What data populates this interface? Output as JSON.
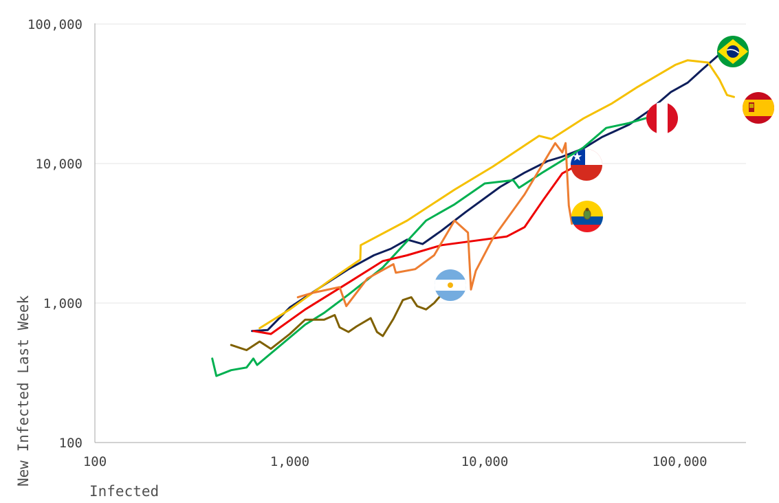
{
  "chart_data": {
    "type": "line",
    "title": "",
    "xlabel": "Infected",
    "ylabel": "New Infected Last Week",
    "x_scale": "log",
    "y_scale": "log",
    "xlim": [
      100,
      200000
    ],
    "ylim": [
      100,
      100000
    ],
    "x_ticks": [
      100,
      1000,
      10000,
      100000
    ],
    "x_tick_labels": [
      "100",
      "1,000",
      "10,000",
      "100,000"
    ],
    "y_ticks": [
      100,
      1000,
      10000,
      100000
    ],
    "y_tick_labels": [
      "100",
      "1,000",
      "10,000",
      "100,000"
    ],
    "grid": "horizontal",
    "legend": "flag icons at series ends",
    "series": [
      {
        "color": "#0e1e5b",
        "flag": "brazil-flag-icon",
        "points": [
          [
            640,
            630
          ],
          [
            770,
            640
          ],
          [
            1000,
            930
          ],
          [
            1500,
            1350
          ],
          [
            2000,
            1750
          ],
          [
            2700,
            2200
          ],
          [
            3300,
            2450
          ],
          [
            4000,
            2850
          ],
          [
            4800,
            2650
          ],
          [
            6000,
            3300
          ],
          [
            8000,
            4500
          ],
          [
            12000,
            6800
          ],
          [
            16000,
            8600
          ],
          [
            21000,
            10400
          ],
          [
            25000,
            11200
          ],
          [
            32000,
            12800
          ],
          [
            40000,
            15500
          ],
          [
            55000,
            19000
          ],
          [
            70000,
            24000
          ],
          [
            90000,
            32500
          ],
          [
            110000,
            38000
          ],
          [
            130000,
            47000
          ],
          [
            165000,
            63000
          ]
        ]
      },
      {
        "color": "#f5c000",
        "flag": "spain-flag-icon",
        "points": [
          [
            700,
            660
          ],
          [
            1000,
            900
          ],
          [
            1600,
            1450
          ],
          [
            2300,
            2050
          ],
          [
            2310,
            2600
          ],
          [
            4000,
            3900
          ],
          [
            7000,
            6500
          ],
          [
            11000,
            9500
          ],
          [
            19000,
            15800
          ],
          [
            22000,
            15000
          ],
          [
            32000,
            21000
          ],
          [
            45000,
            27000
          ],
          [
            60000,
            35000
          ],
          [
            95000,
            51000
          ],
          [
            110000,
            55000
          ],
          [
            140000,
            53000
          ],
          [
            160000,
            40000
          ],
          [
            175000,
            31000
          ],
          [
            190000,
            30000
          ]
        ]
      },
      {
        "color": "#00b050",
        "flag": "peru-flag-icon",
        "points": [
          [
            400,
            400
          ],
          [
            420,
            300
          ],
          [
            500,
            330
          ],
          [
            600,
            345
          ],
          [
            650,
            400
          ],
          [
            680,
            360
          ],
          [
            900,
            500
          ],
          [
            1200,
            700
          ],
          [
            1500,
            850
          ],
          [
            2000,
            1150
          ],
          [
            3000,
            1800
          ],
          [
            5000,
            3900
          ],
          [
            7000,
            5100
          ],
          [
            10000,
            7200
          ],
          [
            14000,
            7600
          ],
          [
            15000,
            6700
          ],
          [
            20000,
            8700
          ],
          [
            32000,
            13000
          ],
          [
            42000,
            18000
          ],
          [
            55000,
            19500
          ],
          [
            70000,
            21500
          ]
        ]
      },
      {
        "color": "#ee0000",
        "flag": "chile-flag-icon",
        "points": [
          [
            650,
            630
          ],
          [
            800,
            600
          ],
          [
            1200,
            900
          ],
          [
            2000,
            1400
          ],
          [
            3000,
            2000
          ],
          [
            4000,
            2200
          ],
          [
            6000,
            2600
          ],
          [
            9000,
            2800
          ],
          [
            13000,
            3000
          ],
          [
            16000,
            3500
          ],
          [
            20000,
            5500
          ],
          [
            25000,
            8500
          ],
          [
            29000,
            9500
          ]
        ]
      },
      {
        "color": "#ed7d31",
        "flag": "ecuador-flag-icon",
        "points": [
          [
            1100,
            1100
          ],
          [
            1300,
            1180
          ],
          [
            1800,
            1300
          ],
          [
            1950,
            950
          ],
          [
            2500,
            1500
          ],
          [
            3400,
            1900
          ],
          [
            3500,
            1650
          ],
          [
            4400,
            1750
          ],
          [
            5500,
            2200
          ],
          [
            7000,
            3900
          ],
          [
            8200,
            3200
          ],
          [
            8500,
            1250
          ],
          [
            9000,
            1700
          ],
          [
            11000,
            2900
          ],
          [
            16000,
            6000
          ],
          [
            23000,
            14000
          ],
          [
            25000,
            12000
          ],
          [
            26000,
            14000
          ],
          [
            27000,
            5000
          ],
          [
            28000,
            3700
          ],
          [
            30000,
            4500
          ],
          [
            32000,
            4500
          ],
          [
            33000,
            3900
          ]
        ]
      },
      {
        "color": "#7f6000",
        "flag": "argentina-flag-icon",
        "points": [
          [
            500,
            500
          ],
          [
            600,
            460
          ],
          [
            700,
            530
          ],
          [
            800,
            470
          ],
          [
            1000,
            600
          ],
          [
            1200,
            760
          ],
          [
            1500,
            760
          ],
          [
            1700,
            820
          ],
          [
            1800,
            670
          ],
          [
            2000,
            620
          ],
          [
            2200,
            680
          ],
          [
            2600,
            780
          ],
          [
            2800,
            620
          ],
          [
            3000,
            580
          ],
          [
            3400,
            770
          ],
          [
            3800,
            1050
          ],
          [
            4200,
            1100
          ],
          [
            4500,
            950
          ],
          [
            5000,
            900
          ],
          [
            5500,
            1000
          ],
          [
            6000,
            1150
          ]
        ]
      }
    ],
    "colors": {
      "gridline": "#e6e6e6",
      "axis": "#a6a6a6"
    }
  }
}
